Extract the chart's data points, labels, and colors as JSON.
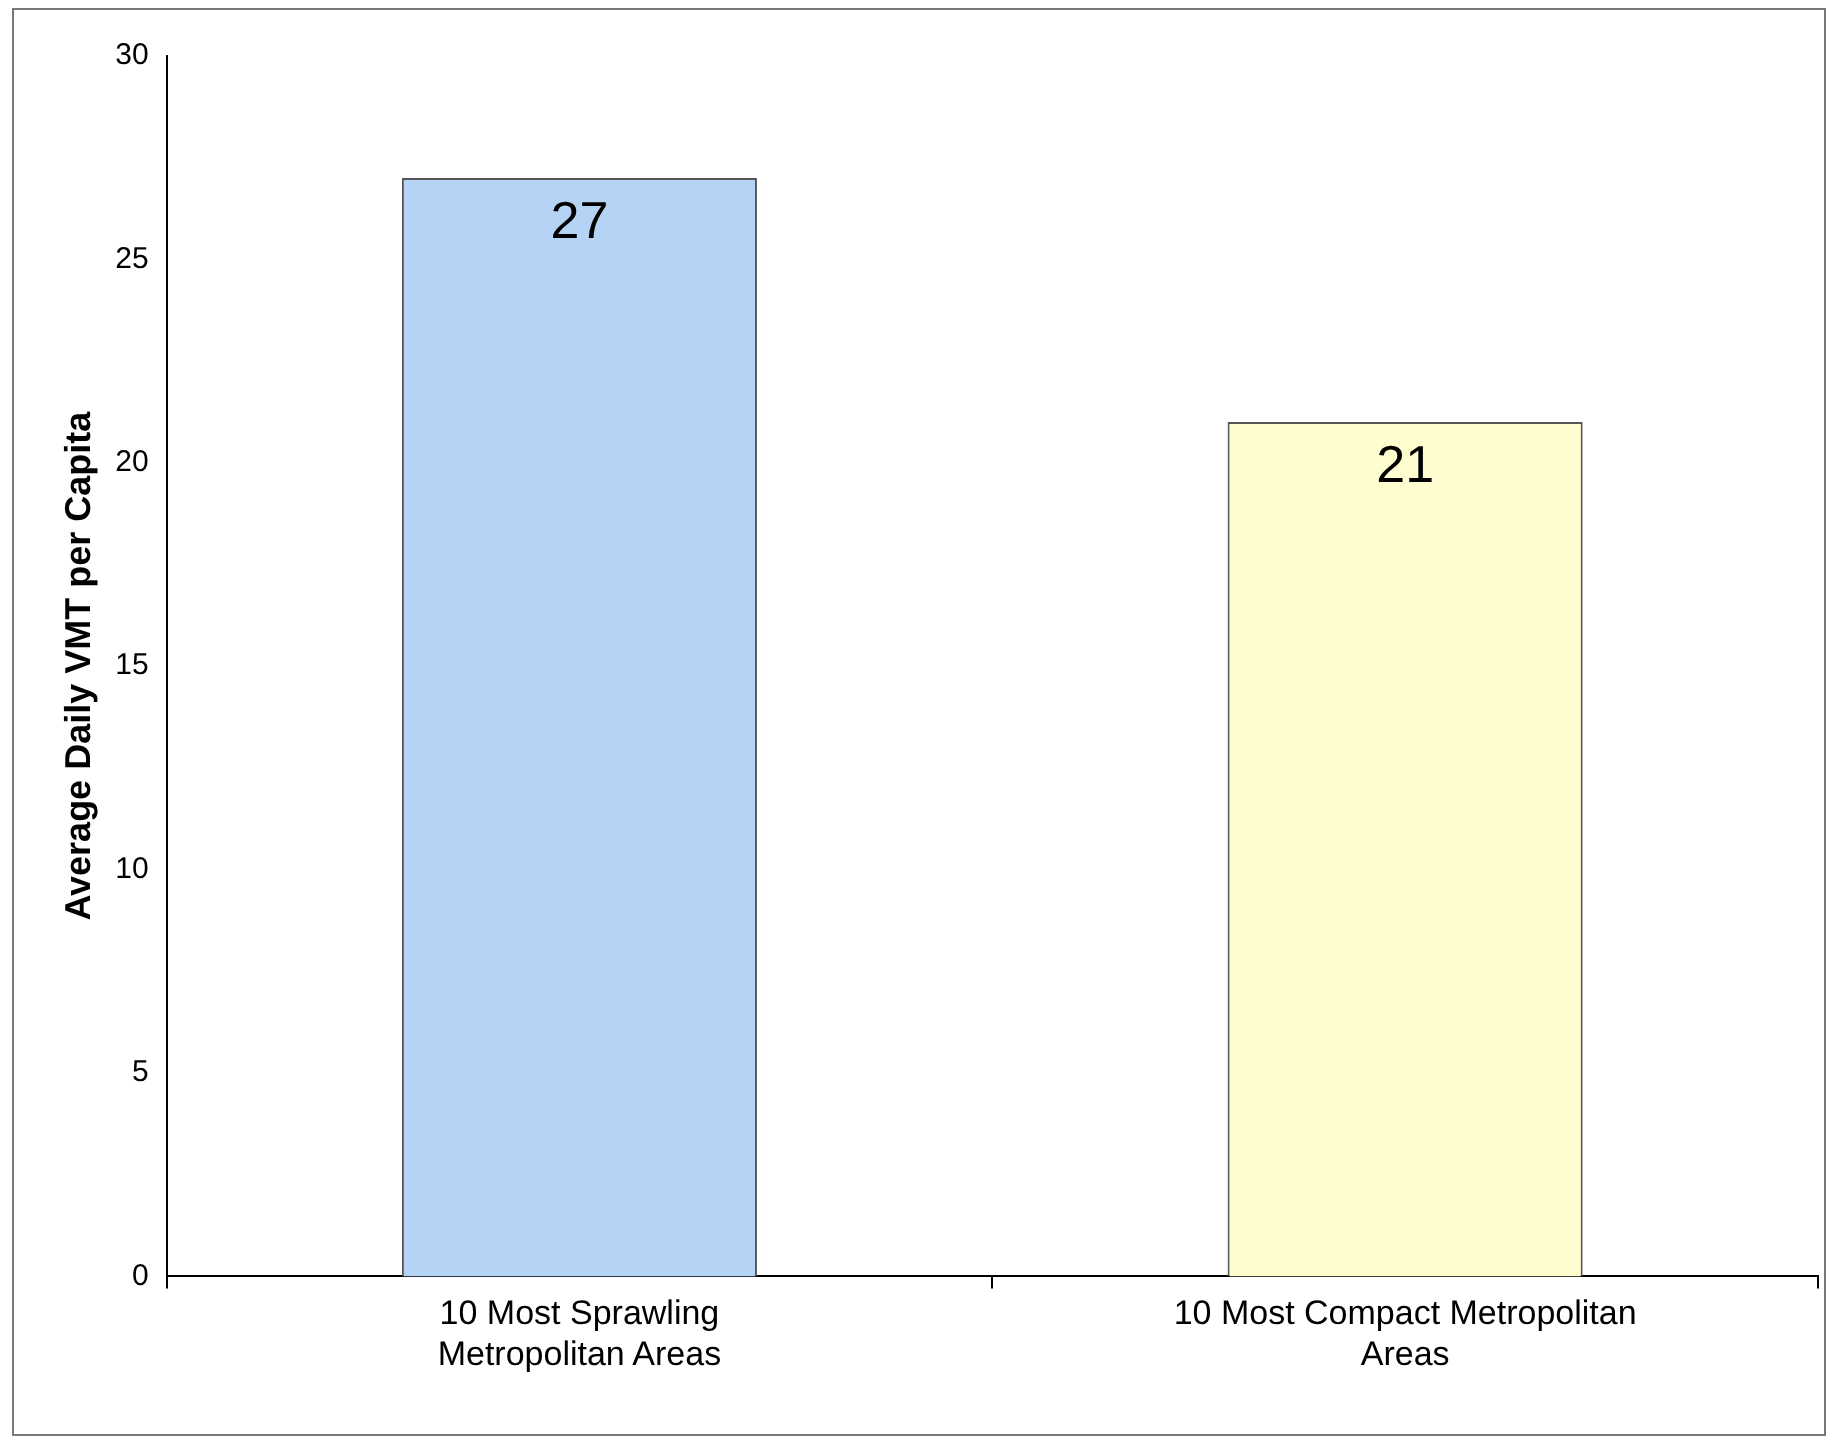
{
  "chart_data": {
    "type": "bar",
    "ylabel": "Average Daily VMT per Capita",
    "categories": [
      "10 Most Sprawling Metropolitan Areas",
      "10 Most Compact Metropolitan Areas"
    ],
    "values": [
      27,
      21
    ],
    "colors": [
      "#b4d3f5",
      "#fdfdd0"
    ],
    "ylim": [
      0,
      30
    ],
    "yticks": [
      0,
      5,
      10,
      15,
      20,
      25,
      30
    ],
    "grid": false,
    "legend": false,
    "data_labels": true
  }
}
